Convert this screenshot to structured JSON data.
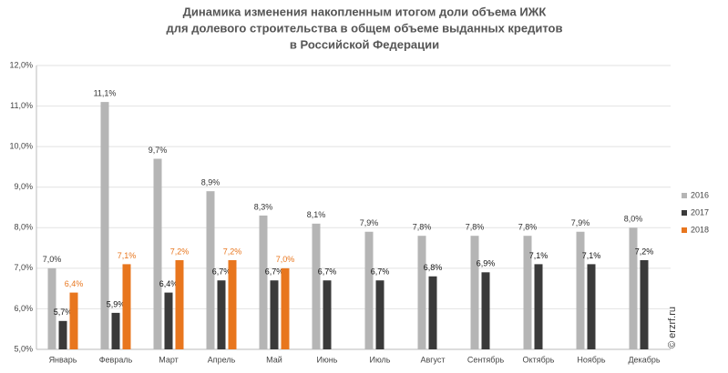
{
  "chart_data": {
    "type": "bar",
    "title": [
      "Динамика изменения накопленным итогом доли объема ИЖК",
      "для долевого строительства  в общем объеме выданных кредитов",
      "в Российской  Федерации"
    ],
    "watermark": "© erzrf.ru",
    "categories": [
      "Январь",
      "Февраль",
      "Март",
      "Апрель",
      "Май",
      "Июнь",
      "Июль",
      "Август",
      "Сентябрь",
      "Октябрь",
      "Ноябрь",
      "Декабрь"
    ],
    "series": [
      {
        "name": "2016",
        "color": "#b5b5b5",
        "label_color": "#333333",
        "values": [
          7.0,
          11.1,
          9.7,
          8.9,
          8.3,
          8.1,
          7.9,
          7.8,
          7.8,
          7.8,
          7.9,
          8.0
        ],
        "value_labels": [
          "7,0%",
          "11,1%",
          "9,7%",
          "8,9%",
          "8,3%",
          "8,1%",
          "7,9%",
          "7,8%",
          "7,8%",
          "7,8%",
          "7,9%",
          "8,0%"
        ]
      },
      {
        "name": "2017",
        "color": "#3a3a3a",
        "label_color": "#111111",
        "values": [
          5.7,
          5.9,
          6.4,
          6.7,
          6.7,
          6.7,
          6.7,
          6.8,
          6.9,
          7.1,
          7.1,
          7.2
        ],
        "value_labels": [
          "5,7%",
          "5,9%",
          "6,4%",
          "6,7%",
          "6,7%",
          "6,7%",
          "6,7%",
          "6,8%",
          "6,9%",
          "7,1%",
          "7,1%",
          "7,2%"
        ]
      },
      {
        "name": "2018",
        "color": "#e8761e",
        "label_color": "#e8761e",
        "values": [
          6.4,
          7.1,
          7.2,
          7.2,
          7.0,
          null,
          null,
          null,
          null,
          null,
          null,
          null
        ],
        "value_labels": [
          "6,4%",
          "7,1%",
          "7,2%",
          "7,2%",
          "7,0%",
          null,
          null,
          null,
          null,
          null,
          null,
          null
        ]
      }
    ],
    "ylim": [
      5,
      12
    ],
    "yticks": [
      {
        "value": 5,
        "label": "5,0%"
      },
      {
        "value": 6,
        "label": "6,0%"
      },
      {
        "value": 7,
        "label": "7,0%"
      },
      {
        "value": 8,
        "label": "8,0%"
      },
      {
        "value": 9,
        "label": "9,0%"
      },
      {
        "value": 10,
        "label": "10,0%"
      },
      {
        "value": 11,
        "label": "11,0%"
      },
      {
        "value": 12,
        "label": "12,0%"
      }
    ],
    "grid": true,
    "legend": "right"
  }
}
